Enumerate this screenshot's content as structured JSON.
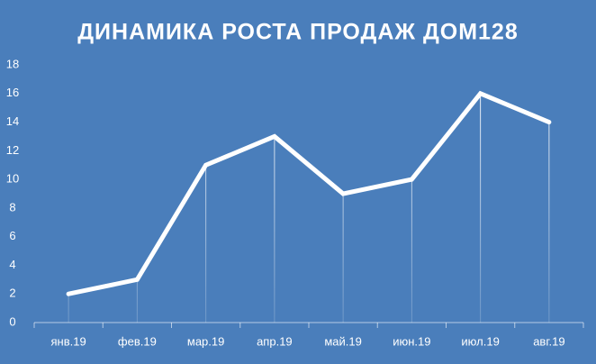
{
  "chart_data": {
    "type": "line",
    "title": "ДИНАМИКА  РОСТА ПРОДАЖ ДОМ128",
    "categories": [
      "янв.19",
      "фев.19",
      "мар.19",
      "апр.19",
      "май.19",
      "июн.19",
      "июл.19",
      "авг.19"
    ],
    "values": [
      2,
      3,
      11,
      13,
      9,
      10,
      16,
      14
    ],
    "color": "#ffffff",
    "ylim": [
      0,
      18
    ],
    "yticks": [
      0,
      2,
      4,
      6,
      8,
      10,
      12,
      14,
      16,
      18
    ],
    "grid": false,
    "drop_lines": true
  }
}
